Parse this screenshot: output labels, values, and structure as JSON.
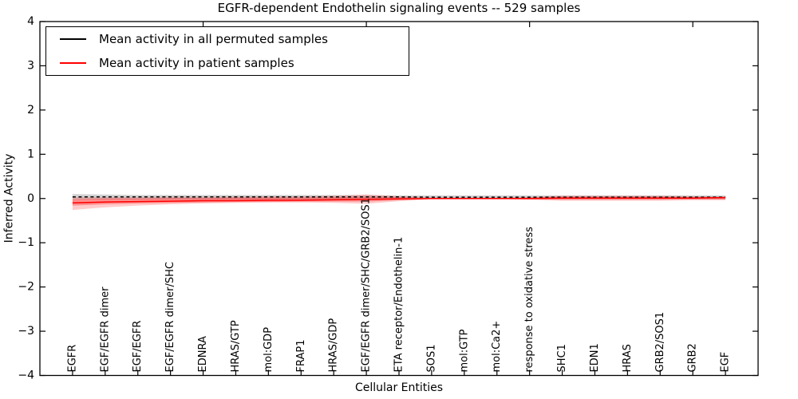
{
  "title": "EGFR-dependent Endothelin signaling events -- 529 samples",
  "legend": {
    "items": [
      {
        "label": "Mean activity in all permuted samples",
        "color": "#000000"
      },
      {
        "label": "Mean activity in patient samples",
        "color": "#ff0000"
      }
    ],
    "position": "upper left"
  },
  "chart_data": {
    "type": "line",
    "title": "EGFR-dependent Endothelin signaling events -- 529 samples",
    "xlabel": "Cellular Entities",
    "ylabel": "Inferred Activity",
    "ylim": [
      -4,
      4
    ],
    "xlim": [
      0,
      22
    ],
    "yticks": [
      4,
      3,
      2,
      1,
      0,
      -1,
      -2,
      -3,
      -4
    ],
    "top_xticks": [
      5,
      10,
      15,
      20
    ],
    "grid": false,
    "legend_position": "upper left",
    "categories": [
      "EGFR",
      "EGF/EGFR dimer",
      "EGF/EGFR",
      "EGF/EGFR dimer/SHC",
      "EDNRA",
      "HRAS/GTP",
      "mol:GDP",
      "FRAP1",
      "HRAS/GDP",
      "EGF/EGFR dimer/SHC/GRB2/SOS1",
      "ETA receptor/Endothelin-1",
      "SOS1",
      "mol:GTP",
      "mol:Ca2+",
      "response to oxidative stress",
      "SHC1",
      "EDN1",
      "HRAS",
      "GRB2/SOS1",
      "GRB2",
      "EGF"
    ],
    "series": [
      {
        "name": "Mean activity in all permuted samples",
        "color": "#000000",
        "style": "dashed",
        "values": [
          0.035,
          0.035,
          0.035,
          0.035,
          0.035,
          0.035,
          0.035,
          0.035,
          0.035,
          0.035,
          0.035,
          0.03,
          0.03,
          0.03,
          0.03,
          0.03,
          0.03,
          0.03,
          0.03,
          0.03,
          0.03
        ]
      },
      {
        "name": "Mean activity in patient samples",
        "color": "#ff0000",
        "style": "solid",
        "values": [
          -0.1,
          -0.08,
          -0.07,
          -0.06,
          -0.05,
          -0.05,
          -0.04,
          -0.04,
          -0.03,
          -0.02,
          -0.01,
          0.0,
          0.0,
          0.0,
          0.0,
          0.01,
          0.01,
          0.01,
          0.01,
          0.01,
          0.02
        ]
      }
    ],
    "bands": [
      {
        "name": "permuted-band",
        "color": "rgba(120,120,120,0.35)",
        "low": [
          -0.03,
          -0.02,
          -0.02,
          -0.02,
          -0.02,
          -0.02,
          -0.02,
          -0.02,
          -0.02,
          -0.02,
          -0.02,
          -0.01,
          -0.01,
          -0.01,
          -0.01,
          -0.01,
          -0.01,
          -0.01,
          -0.01,
          -0.01,
          -0.01
        ],
        "high": [
          0.1,
          0.09,
          0.08,
          0.08,
          0.08,
          0.08,
          0.08,
          0.08,
          0.08,
          0.08,
          0.07,
          0.07,
          0.07,
          0.07,
          0.07,
          0.07,
          0.07,
          0.07,
          0.07,
          0.07,
          0.07
        ]
      },
      {
        "name": "patient-band-outer",
        "color": "rgba(255,0,0,0.20)",
        "low": [
          -0.26,
          -0.2,
          -0.16,
          -0.13,
          -0.11,
          -0.1,
          -0.09,
          -0.09,
          -0.1,
          -0.12,
          -0.06,
          -0.02,
          -0.02,
          -0.02,
          -0.03,
          -0.05,
          -0.05,
          -0.05,
          -0.05,
          -0.04,
          -0.04
        ],
        "high": [
          0.03,
          0.03,
          0.03,
          0.04,
          0.04,
          0.04,
          0.05,
          0.05,
          0.06,
          0.09,
          0.05,
          0.02,
          0.02,
          0.02,
          0.03,
          0.06,
          0.06,
          0.06,
          0.06,
          0.05,
          0.05
        ]
      },
      {
        "name": "patient-band-inner",
        "color": "rgba(255,0,0,0.30)",
        "low": [
          -0.16,
          -0.13,
          -0.11,
          -0.1,
          -0.09,
          -0.08,
          -0.08,
          -0.07,
          -0.07,
          -0.07,
          -0.04,
          -0.01,
          -0.01,
          -0.01,
          -0.02,
          -0.03,
          -0.03,
          -0.03,
          -0.03,
          -0.02,
          -0.02
        ],
        "high": [
          -0.02,
          0.0,
          0.0,
          0.01,
          0.01,
          0.02,
          0.02,
          0.02,
          0.03,
          0.04,
          0.03,
          0.01,
          0.01,
          0.01,
          0.02,
          0.04,
          0.04,
          0.04,
          0.04,
          0.03,
          0.03
        ]
      }
    ]
  }
}
